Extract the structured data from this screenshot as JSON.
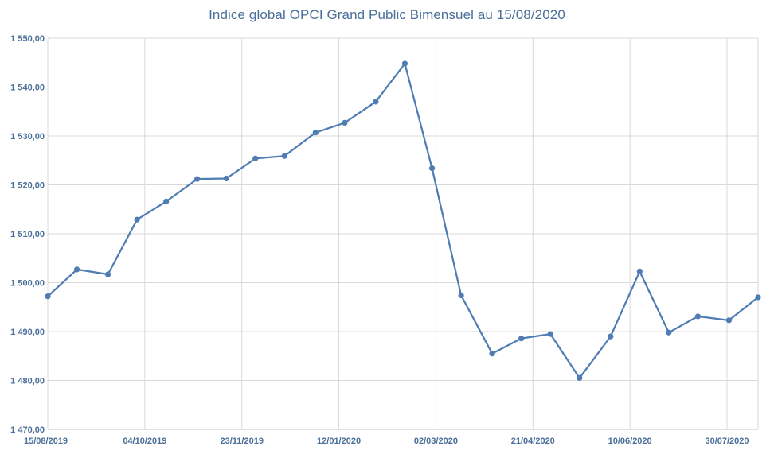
{
  "chart_data": {
    "type": "line",
    "title": "Indice global OPCI Grand Public Bimensuel au 15/08/2020",
    "xlabel": "",
    "ylabel": "",
    "ylim": [
      1470,
      1550
    ],
    "y_ticks": [
      "1 470,00",
      "1 480,00",
      "1 490,00",
      "1 500,00",
      "1 510,00",
      "1 520,00",
      "1 530,00",
      "1 540,00",
      "1 550,00"
    ],
    "x_tick_labels": [
      "15/08/2019",
      "04/10/2019",
      "23/11/2019",
      "12/01/2020",
      "02/03/2020",
      "21/04/2020",
      "10/06/2020",
      "30/07/2020"
    ],
    "x_range": [
      "2019-08-15",
      "2020-08-15"
    ],
    "grid": true,
    "line_color": "#4f7db3",
    "x": [
      "2019-08-15",
      "2019-08-30",
      "2019-09-15",
      "2019-09-30",
      "2019-10-15",
      "2019-10-31",
      "2019-11-15",
      "2019-11-30",
      "2019-12-15",
      "2019-12-31",
      "2020-01-15",
      "2020-01-31",
      "2020-02-15",
      "2020-02-29",
      "2020-03-15",
      "2020-03-31",
      "2020-04-15",
      "2020-04-30",
      "2020-05-15",
      "2020-05-31",
      "2020-06-15",
      "2020-06-30",
      "2020-07-15",
      "2020-07-31",
      "2020-08-15"
    ],
    "values": [
      1497.2,
      1502.7,
      1501.7,
      1512.9,
      1516.6,
      1521.2,
      1521.3,
      1525.4,
      1525.9,
      1530.7,
      1532.7,
      1537.0,
      1544.8,
      1523.4,
      1497.4,
      1485.5,
      1488.6,
      1489.5,
      1480.5,
      1489.0,
      1502.3,
      1489.8,
      1493.1,
      1492.3,
      1497.0
    ]
  }
}
